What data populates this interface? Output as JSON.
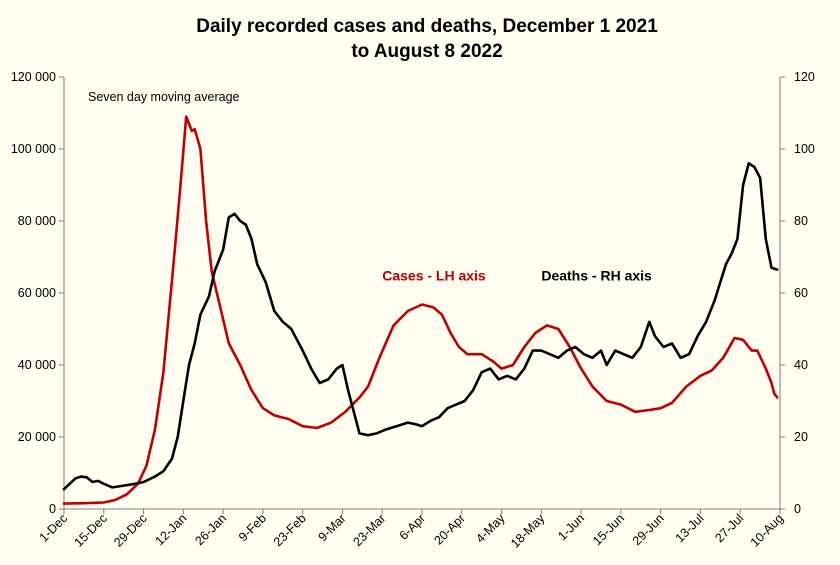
{
  "chart_data": {
    "type": "line",
    "title_lines": [
      "Daily recorded cases and deaths,  December 1 2021",
      "to August 8 2022"
    ],
    "note": "Seven day moving average",
    "x_start": "2021-12-01",
    "x_end": "2022-08-10",
    "x_tick_labels": [
      {
        "date": "2021-12-01",
        "label": "1-Dec"
      },
      {
        "date": "2021-12-15",
        "label": "15-Dec"
      },
      {
        "date": "2021-12-29",
        "label": "29-Dec"
      },
      {
        "date": "2022-01-12",
        "label": "12-Jan"
      },
      {
        "date": "2022-01-26",
        "label": "26-Jan"
      },
      {
        "date": "2022-02-09",
        "label": "9-Feb"
      },
      {
        "date": "2022-02-23",
        "label": "23-Feb"
      },
      {
        "date": "2022-03-09",
        "label": "9-Mar"
      },
      {
        "date": "2022-03-23",
        "label": "23-Mar"
      },
      {
        "date": "2022-04-06",
        "label": "6-Apr"
      },
      {
        "date": "2022-04-20",
        "label": "20-Apr"
      },
      {
        "date": "2022-05-04",
        "label": "4-May"
      },
      {
        "date": "2022-05-18",
        "label": "18-May"
      },
      {
        "date": "2022-06-01",
        "label": "1-Jun"
      },
      {
        "date": "2022-06-15",
        "label": "15-Jun"
      },
      {
        "date": "2022-06-29",
        "label": "29-Jun"
      },
      {
        "date": "2022-07-13",
        "label": "13-Jul"
      },
      {
        "date": "2022-07-27",
        "label": "27-Jul"
      },
      {
        "date": "2022-08-10",
        "label": "10-Aug"
      }
    ],
    "y_left": {
      "min": 0,
      "max": 120000,
      "ticks": [
        0,
        20000,
        40000,
        60000,
        80000,
        100000,
        120000
      ],
      "tick_labels": [
        "0",
        "20 000",
        "40 000",
        "60 000",
        "80 000",
        "100 000",
        "120 000"
      ]
    },
    "y_right": {
      "min": 0,
      "max": 120,
      "ticks": [
        0,
        20,
        40,
        60,
        80,
        100,
        120
      ],
      "tick_labels": [
        "0",
        "20",
        "40",
        "60",
        "80",
        "100",
        "120"
      ]
    },
    "grid": false,
    "series": [
      {
        "name": "Cases - LH axis",
        "axis": "left",
        "color": "#c00000",
        "points": [
          [
            "2021-12-01",
            1500
          ],
          [
            "2021-12-08",
            1600
          ],
          [
            "2021-12-15",
            1800
          ],
          [
            "2021-12-19",
            2500
          ],
          [
            "2021-12-23",
            4000
          ],
          [
            "2021-12-27",
            7000
          ],
          [
            "2021-12-30",
            12000
          ],
          [
            "2022-01-02",
            22000
          ],
          [
            "2022-01-05",
            38000
          ],
          [
            "2022-01-07",
            55000
          ],
          [
            "2022-01-09",
            72000
          ],
          [
            "2022-01-11",
            90000
          ],
          [
            "2022-01-13",
            109000
          ],
          [
            "2022-01-14",
            107000
          ],
          [
            "2022-01-15",
            105000
          ],
          [
            "2022-01-16",
            105500
          ],
          [
            "2022-01-18",
            100000
          ],
          [
            "2022-01-20",
            80000
          ],
          [
            "2022-01-22",
            66000
          ],
          [
            "2022-01-25",
            56000
          ],
          [
            "2022-01-28",
            46000
          ],
          [
            "2022-02-01",
            40000
          ],
          [
            "2022-02-05",
            33000
          ],
          [
            "2022-02-09",
            28000
          ],
          [
            "2022-02-13",
            26000
          ],
          [
            "2022-02-18",
            25000
          ],
          [
            "2022-02-23",
            23000
          ],
          [
            "2022-02-28",
            22500
          ],
          [
            "2022-03-05",
            24000
          ],
          [
            "2022-03-10",
            27000
          ],
          [
            "2022-03-15",
            31000
          ],
          [
            "2022-03-18",
            34000
          ],
          [
            "2022-03-22",
            42000
          ],
          [
            "2022-03-27",
            51000
          ],
          [
            "2022-04-01",
            55000
          ],
          [
            "2022-04-06",
            56800
          ],
          [
            "2022-04-10",
            56000
          ],
          [
            "2022-04-13",
            54000
          ],
          [
            "2022-04-16",
            49000
          ],
          [
            "2022-04-19",
            45000
          ],
          [
            "2022-04-22",
            43000
          ],
          [
            "2022-04-27",
            43000
          ],
          [
            "2022-05-01",
            41000
          ],
          [
            "2022-05-04",
            39000
          ],
          [
            "2022-05-08",
            40000
          ],
          [
            "2022-05-12",
            45000
          ],
          [
            "2022-05-16",
            49000
          ],
          [
            "2022-05-20",
            51000
          ],
          [
            "2022-05-24",
            50000
          ],
          [
            "2022-05-28",
            45000
          ],
          [
            "2022-06-01",
            39000
          ],
          [
            "2022-06-05",
            34000
          ],
          [
            "2022-06-10",
            30000
          ],
          [
            "2022-06-15",
            29000
          ],
          [
            "2022-06-20",
            27000
          ],
          [
            "2022-06-25",
            27500
          ],
          [
            "2022-06-29",
            28000
          ],
          [
            "2022-07-03",
            29500
          ],
          [
            "2022-07-08",
            34000
          ],
          [
            "2022-07-13",
            37000
          ],
          [
            "2022-07-17",
            38500
          ],
          [
            "2022-07-21",
            42000
          ],
          [
            "2022-07-25",
            47500
          ],
          [
            "2022-07-28",
            47000
          ],
          [
            "2022-07-31",
            44000
          ],
          [
            "2022-08-02",
            44000
          ],
          [
            "2022-08-05",
            39000
          ],
          [
            "2022-08-07",
            35000
          ],
          [
            "2022-08-08",
            32000
          ],
          [
            "2022-08-09",
            31000
          ]
        ]
      },
      {
        "name": "Deaths - RH axis",
        "axis": "right",
        "color": "#000000",
        "points": [
          [
            "2021-12-01",
            5.5
          ],
          [
            "2021-12-03",
            7
          ],
          [
            "2021-12-05",
            8.5
          ],
          [
            "2021-12-07",
            9
          ],
          [
            "2021-12-09",
            8.8
          ],
          [
            "2021-12-11",
            7.5
          ],
          [
            "2021-12-13",
            7.8
          ],
          [
            "2021-12-15",
            7
          ],
          [
            "2021-12-18",
            6
          ],
          [
            "2021-12-22",
            6.5
          ],
          [
            "2021-12-26",
            7
          ],
          [
            "2021-12-29",
            7.5
          ],
          [
            "2022-01-02",
            9
          ],
          [
            "2022-01-05",
            10.5
          ],
          [
            "2022-01-08",
            14
          ],
          [
            "2022-01-10",
            20
          ],
          [
            "2022-01-12",
            30
          ],
          [
            "2022-01-14",
            40
          ],
          [
            "2022-01-16",
            46
          ],
          [
            "2022-01-18",
            54
          ],
          [
            "2022-01-21",
            59
          ],
          [
            "2022-01-23",
            66
          ],
          [
            "2022-01-26",
            72
          ],
          [
            "2022-01-28",
            81
          ],
          [
            "2022-01-30",
            82
          ],
          [
            "2022-02-01",
            80
          ],
          [
            "2022-02-03",
            79
          ],
          [
            "2022-02-05",
            75
          ],
          [
            "2022-02-07",
            68
          ],
          [
            "2022-02-10",
            63
          ],
          [
            "2022-02-13",
            55
          ],
          [
            "2022-02-16",
            52
          ],
          [
            "2022-02-19",
            50
          ],
          [
            "2022-02-21",
            47
          ],
          [
            "2022-02-23",
            44
          ],
          [
            "2022-02-26",
            39
          ],
          [
            "2022-03-01",
            35
          ],
          [
            "2022-03-04",
            36
          ],
          [
            "2022-03-07",
            39
          ],
          [
            "2022-03-09",
            40
          ],
          [
            "2022-03-11",
            33
          ],
          [
            "2022-03-13",
            27
          ],
          [
            "2022-03-15",
            21
          ],
          [
            "2022-03-18",
            20.5
          ],
          [
            "2022-03-21",
            21
          ],
          [
            "2022-03-24",
            22
          ],
          [
            "2022-03-28",
            23
          ],
          [
            "2022-04-01",
            24
          ],
          [
            "2022-04-04",
            23.5
          ],
          [
            "2022-04-06",
            23
          ],
          [
            "2022-04-09",
            24.5
          ],
          [
            "2022-04-12",
            25.5
          ],
          [
            "2022-04-15",
            28
          ],
          [
            "2022-04-18",
            29
          ],
          [
            "2022-04-21",
            30
          ],
          [
            "2022-04-24",
            33
          ],
          [
            "2022-04-27",
            38
          ],
          [
            "2022-04-30",
            39
          ],
          [
            "2022-05-03",
            36
          ],
          [
            "2022-05-06",
            37
          ],
          [
            "2022-05-09",
            36
          ],
          [
            "2022-05-12",
            39
          ],
          [
            "2022-05-15",
            44
          ],
          [
            "2022-05-18",
            44
          ],
          [
            "2022-05-21",
            43
          ],
          [
            "2022-05-24",
            42
          ],
          [
            "2022-05-27",
            44
          ],
          [
            "2022-05-30",
            45
          ],
          [
            "2022-06-02",
            43
          ],
          [
            "2022-06-05",
            42
          ],
          [
            "2022-06-08",
            44
          ],
          [
            "2022-06-10",
            40
          ],
          [
            "2022-06-13",
            44
          ],
          [
            "2022-06-16",
            43
          ],
          [
            "2022-06-19",
            42
          ],
          [
            "2022-06-22",
            45
          ],
          [
            "2022-06-25",
            52
          ],
          [
            "2022-06-27",
            48
          ],
          [
            "2022-06-30",
            45
          ],
          [
            "2022-07-03",
            46
          ],
          [
            "2022-07-06",
            42
          ],
          [
            "2022-07-09",
            43
          ],
          [
            "2022-07-12",
            48
          ],
          [
            "2022-07-15",
            52
          ],
          [
            "2022-07-18",
            58
          ],
          [
            "2022-07-20",
            63
          ],
          [
            "2022-07-22",
            68
          ],
          [
            "2022-07-24",
            71
          ],
          [
            "2022-07-26",
            75
          ],
          [
            "2022-07-28",
            90
          ],
          [
            "2022-07-30",
            96
          ],
          [
            "2022-08-01",
            95
          ],
          [
            "2022-08-03",
            92
          ],
          [
            "2022-08-05",
            75
          ],
          [
            "2022-08-07",
            67
          ],
          [
            "2022-08-09",
            66.5
          ]
        ]
      }
    ],
    "annotations": [
      {
        "text": "Cases - LH axis",
        "series": "Cases - LH axis",
        "anchor": "2022-03-23",
        "value_left": 63500,
        "color": "#c00000"
      },
      {
        "text": "Deaths - RH axis",
        "series": "Deaths - RH axis",
        "anchor": "2022-05-18",
        "value_left": 63500,
        "color": "#000000"
      }
    ]
  }
}
